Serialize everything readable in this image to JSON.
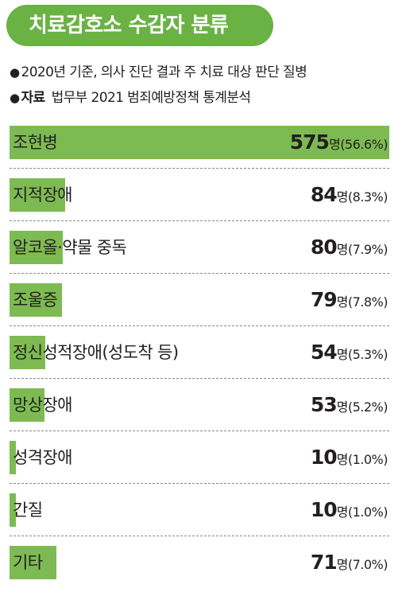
{
  "title": "치료감호소 수감자 분류",
  "notes": {
    "bullet": "●",
    "basis": "2020년 기준, 의사 진단 결과 주 치료 대상 판단 질병",
    "source_label": "자료",
    "source_text": "법무부 2021 범죄예방정책 통계분석"
  },
  "unit": "명",
  "colors": {
    "bar": "#7dbb52",
    "title_bg": "#6ab244"
  },
  "chart_data": {
    "type": "bar",
    "orientation": "horizontal",
    "categories": [
      "조현병",
      "지적장애",
      "알코올·약물 중독",
      "조울증",
      "정신성적장애(성도착 등)",
      "망상장애",
      "성격장애",
      "간질",
      "기타"
    ],
    "values": [
      575,
      84,
      80,
      79,
      54,
      53,
      10,
      10,
      71
    ],
    "percent_labels": [
      "(56.6%)",
      "(8.3%)",
      "(7.9%)",
      "(7.8%)",
      "(5.3%)",
      "(5.2%)",
      "(1.0%)",
      "(1.0%)",
      "(7.0%)"
    ],
    "xlim": [
      0,
      575
    ],
    "grid": false,
    "legend": "none"
  }
}
